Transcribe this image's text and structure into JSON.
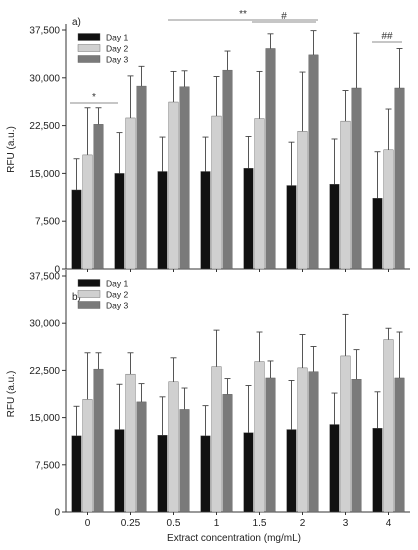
{
  "chart_data": [
    {
      "type": "bar",
      "panel_label": "a)",
      "categories": [
        "0",
        "0.25",
        "0.5",
        "1",
        "1.5",
        "2",
        "3",
        "4"
      ],
      "xlabel": "",
      "ylabel": "RFU (a.u.)",
      "ylim": [
        0,
        37500
      ],
      "yticks": [
        "37,500",
        "30,000",
        "22,500",
        "15,000",
        "7,500",
        "0"
      ],
      "legend_position": "top-left",
      "series": [
        {
          "name": "Day 1",
          "color": "#111111",
          "values": [
            12400,
            15000,
            15300,
            15300,
            15800,
            13100,
            13300,
            11100
          ],
          "errors": [
            4900,
            6400,
            5400,
            5400,
            5000,
            6800,
            7100,
            7300
          ]
        },
        {
          "name": "Day 2",
          "color": "#d0d0d0",
          "values": [
            17900,
            23700,
            26200,
            24000,
            23600,
            21600,
            23200,
            18700
          ],
          "errors": [
            7400,
            6600,
            4800,
            6200,
            7400,
            9300,
            4800,
            6400
          ]
        },
        {
          "name": "Day 3",
          "color": "#7a7a7a",
          "values": [
            22700,
            28700,
            28600,
            31200,
            34600,
            33600,
            28400,
            28400
          ],
          "errors": [
            2600,
            3100,
            2500,
            3000,
            2300,
            3800,
            8600,
            6200
          ]
        }
      ],
      "annotations": [
        {
          "text": "*",
          "from_category": "0",
          "to_category": "0.25"
        },
        {
          "text": "**",
          "from_category": "0.25",
          "to_category": "3"
        },
        {
          "text": "#",
          "from_category": "1.5",
          "to_category": "2"
        },
        {
          "text": "##",
          "from_category": "4",
          "to_category": "4"
        }
      ]
    },
    {
      "type": "bar",
      "panel_label": "b)",
      "categories": [
        "0",
        "0.25",
        "0.5",
        "1",
        "1.5",
        "2",
        "3",
        "4"
      ],
      "xlabel": "Extract concentration (mg/mL)",
      "ylabel": "RFU (a.u.)",
      "ylim": [
        0,
        37500
      ],
      "yticks": [
        "37,500",
        "30,000",
        "22,500",
        "15,000",
        "7,500",
        "0"
      ],
      "legend_position": "top-left",
      "series": [
        {
          "name": "Day 1",
          "color": "#111111",
          "values": [
            12100,
            13100,
            12200,
            12100,
            12600,
            13100,
            13900,
            13300
          ],
          "errors": [
            4700,
            7200,
            6100,
            4800,
            7500,
            7800,
            5000,
            5800
          ]
        },
        {
          "name": "Day 2",
          "color": "#d0d0d0",
          "values": [
            17900,
            21900,
            20700,
            23100,
            23900,
            22900,
            24800,
            27400
          ],
          "errors": [
            7400,
            3400,
            3800,
            5800,
            4700,
            5300,
            6600,
            1800
          ]
        },
        {
          "name": "Day 3",
          "color": "#7a7a7a",
          "values": [
            22700,
            17500,
            16300,
            18700,
            21300,
            22300,
            21100,
            21300
          ],
          "errors": [
            2600,
            2900,
            3400,
            2500,
            2700,
            4000,
            4700,
            7300
          ]
        }
      ]
    }
  ]
}
